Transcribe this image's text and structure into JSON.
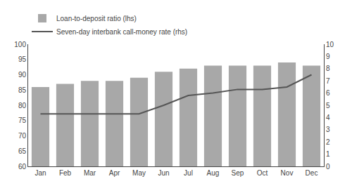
{
  "chart_data": {
    "type": "bar",
    "categories": [
      "Jan",
      "Feb",
      "Mar",
      "Apr",
      "May",
      "Jun",
      "Jul",
      "Aug",
      "Sep",
      "Oct",
      "Nov",
      "Dec"
    ],
    "series": [
      {
        "name": "Loan-to-deposit ratio (lhs)",
        "type": "bar",
        "color": "#a8a8a8",
        "values": [
          86.0,
          87.0,
          88.0,
          88.0,
          89.0,
          91.0,
          92.0,
          93.0,
          93.0,
          93.0,
          94.0,
          93.0
        ]
      },
      {
        "name": "Seven-day interbank call-money rate (rhs)",
        "type": "line",
        "color": "#555555",
        "axis": "y2",
        "values": [
          4.3,
          4.3,
          4.3,
          4.3,
          4.3,
          5.0,
          5.8,
          6.0,
          6.3,
          6.3,
          6.5,
          7.5
        ]
      }
    ],
    "ylim": [
      60,
      100
    ],
    "yticks": [
      60,
      65,
      70,
      75,
      80,
      85,
      90,
      95,
      100
    ],
    "y2lim": [
      0,
      10
    ],
    "y2ticks": [
      0,
      1,
      2,
      3,
      4,
      5,
      6,
      7,
      8,
      9,
      10
    ],
    "grid": false,
    "legend": "upper left"
  }
}
